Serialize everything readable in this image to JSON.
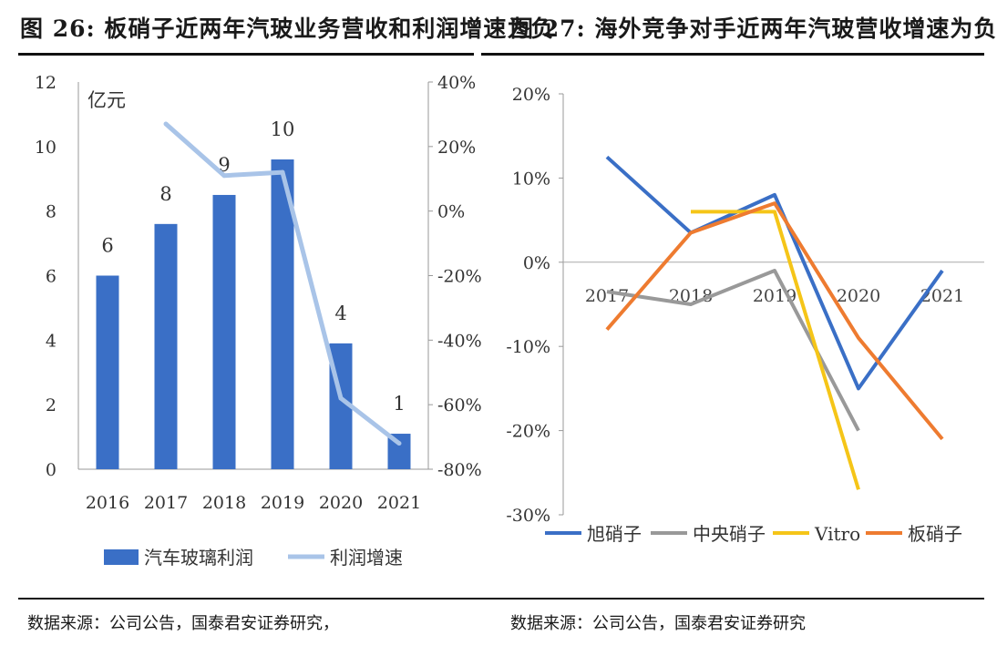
{
  "titles": {
    "left": "图 26: 板硝子近两年汽玻业务营收和利润增速为负",
    "right": "图 27: 海外竞争对手近两年汽玻营收增速为负"
  },
  "sources": {
    "left": "数据来源：公司公告，国泰君安证券研究，",
    "right": "数据来源：公司公告，国泰君安证券研究"
  },
  "colors": {
    "bar": "#3a6fc6",
    "growth_line": "#a9c4e8",
    "asahi": "#3a6fc6",
    "central": "#999999",
    "vitro": "#f5c518",
    "nsg": "#ee7b30"
  },
  "chart_data": [
    {
      "type": "bar",
      "categories": [
        "2016",
        "2017",
        "2018",
        "2019",
        "2020",
        "2021"
      ],
      "unit_label": "亿元",
      "series": [
        {
          "name": "汽车玻璃利润",
          "type": "bar",
          "axis": "left",
          "values": [
            6,
            7.6,
            8.5,
            9.6,
            3.9,
            1.1
          ],
          "data_labels": [
            "6",
            "8",
            "9",
            "10",
            "4",
            "1"
          ]
        },
        {
          "name": "利润增速",
          "type": "line",
          "axis": "right",
          "values": [
            null,
            27,
            11,
            12,
            -58,
            -72
          ]
        }
      ],
      "left_axis": {
        "ylim": [
          0,
          12
        ],
        "ticks": [
          "0",
          "2",
          "4",
          "6",
          "8",
          "10",
          "12"
        ]
      },
      "right_axis": {
        "ylim": [
          -80,
          40
        ],
        "ticks": [
          "-80%",
          "-60%",
          "-40%",
          "-20%",
          "0%",
          "20%",
          "40%"
        ]
      },
      "legend": "bottom"
    },
    {
      "type": "line",
      "categories": [
        "2017",
        "2018",
        "2019",
        "2020",
        "2021"
      ],
      "ylim": [
        -30,
        20
      ],
      "ticks": [
        "-30%",
        "-20%",
        "-10%",
        "0%",
        "10%",
        "20%"
      ],
      "series": [
        {
          "name": "旭硝子",
          "values": [
            12.5,
            3.5,
            8,
            -15,
            -1
          ]
        },
        {
          "name": "中央硝子",
          "values": [
            -3.5,
            -5,
            -1,
            -20,
            null
          ]
        },
        {
          "name": "Vitro",
          "values": [
            null,
            6,
            6,
            -27,
            null
          ]
        },
        {
          "name": "板硝子",
          "values": [
            -8,
            3.5,
            7,
            -9,
            -21
          ]
        }
      ],
      "legend": "bottom"
    }
  ]
}
